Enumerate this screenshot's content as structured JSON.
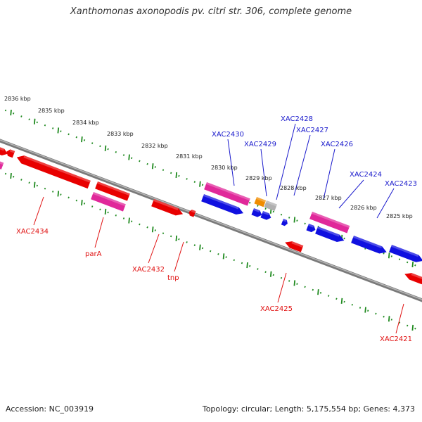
{
  "title": "Xanthomonas axonopodis pv. citri str. 306, complete genome",
  "footer": {
    "accession": "Accession: NC_003919",
    "topology": "Topology: circular; Length: 5,175,554 bp; Genes: 4,373"
  },
  "colors": {
    "backbone": "#7a7a7a",
    "ticks": "#1f8a1f",
    "forward_label": "#1a1acc",
    "reverse_label": "#e01010",
    "red_gene": "#e80000",
    "pink_gene": "#e0289a",
    "blue_gene": "#1010e0",
    "orange_gene": "#f08c00",
    "grey_gene": "#b0b0b0"
  },
  "kbp_labels": [
    "2836 kbp",
    "2835 kbp",
    "2834 kbp",
    "2833 kbp",
    "2832 kbp",
    "2831 kbp",
    "2830 kbp",
    "2829 kbp",
    "2828 kbp",
    "2827 kbp",
    "2826 kbp",
    "2825 kbp"
  ],
  "gene_labels_forward": [
    "XAC2430",
    "XAC2429",
    "XAC2428",
    "XAC2427",
    "XAC2426",
    "XAC2424",
    "XAC2423"
  ],
  "gene_labels_reverse": [
    "XAC2434",
    "parA",
    "XAC2432",
    "tnp",
    "XAC2425",
    "XAC2421"
  ]
}
